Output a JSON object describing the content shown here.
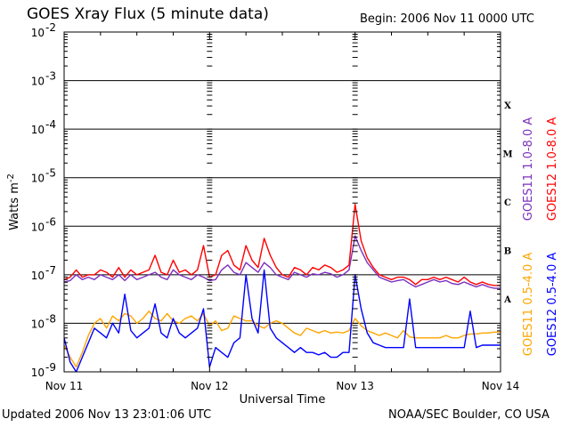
{
  "header": {
    "title": "GOES Xray Flux (5 minute data)",
    "begin": "Begin:  2006 Nov 11 0000 UTC"
  },
  "footer": {
    "updated": "Updated 2006 Nov 13 23:01:06 UTC",
    "credit": "NOAA/SEC Boulder, CO USA"
  },
  "chart_data": {
    "type": "line",
    "title": "GOES Xray Flux (5 minute data)",
    "xlabel": "Universal Time",
    "ylabel": "Watts m",
    "ylabel_sup": "-2",
    "yscale": "log",
    "ylim": [
      1e-09,
      0.01
    ],
    "xlim_hours": [
      0,
      72
    ],
    "x_ticks": [
      {
        "hour": 0,
        "label": "Nov 11"
      },
      {
        "hour": 24,
        "label": "Nov 12"
      },
      {
        "hour": 48,
        "label": "Nov 13"
      },
      {
        "hour": 72,
        "label": "Nov 14"
      }
    ],
    "y_ticks": [
      {
        "exp": -9,
        "label": "-9"
      },
      {
        "exp": -8,
        "label": "-8"
      },
      {
        "exp": -7,
        "label": "-7"
      },
      {
        "exp": -6,
        "label": "-6"
      },
      {
        "exp": -5,
        "label": "-5"
      },
      {
        "exp": -4,
        "label": "-4"
      },
      {
        "exp": -3,
        "label": "-3"
      },
      {
        "exp": -2,
        "label": "-2"
      }
    ],
    "flare_classes": [
      {
        "label": "A",
        "exp": -7.5
      },
      {
        "label": "B",
        "exp": -6.5
      },
      {
        "label": "C",
        "exp": -5.5
      },
      {
        "label": "M",
        "exp": -4.5
      },
      {
        "label": "X",
        "exp": -3.5
      }
    ],
    "grid": true,
    "legend_position": "right",
    "series": [
      {
        "name": "GOES11 1.0-8.0 A",
        "color": "#7b2fbf",
        "hours": [
          0,
          1,
          2,
          3,
          4,
          5,
          6,
          7,
          8,
          9,
          10,
          11,
          12,
          13,
          14,
          15,
          16,
          17,
          18,
          19,
          20,
          21,
          22,
          23,
          24,
          25,
          26,
          27,
          28,
          29,
          30,
          31,
          32,
          33,
          34,
          35,
          36,
          37,
          38,
          39,
          40,
          41,
          42,
          43,
          44,
          45,
          46,
          47,
          48,
          49,
          50,
          51,
          52,
          53,
          54,
          55,
          56,
          57,
          58,
          59,
          60,
          61,
          62,
          63,
          64,
          65,
          66,
          67,
          68,
          69,
          70,
          71,
          72
        ],
        "log10": [
          -7.15,
          -7.12,
          -7.0,
          -7.1,
          -7.05,
          -7.1,
          -7.0,
          -7.05,
          -7.1,
          -7.0,
          -7.12,
          -7.0,
          -7.1,
          -7.05,
          -7.0,
          -6.95,
          -7.05,
          -7.1,
          -6.9,
          -7.0,
          -7.05,
          -7.1,
          -7.0,
          -7.05,
          -7.12,
          -7.1,
          -6.9,
          -6.8,
          -6.95,
          -7.0,
          -6.75,
          -6.85,
          -6.95,
          -6.75,
          -6.85,
          -7.0,
          -7.05,
          -7.1,
          -6.95,
          -7.0,
          -7.05,
          -6.98,
          -7.0,
          -6.95,
          -6.98,
          -7.05,
          -7.0,
          -6.9,
          -6.2,
          -6.5,
          -6.75,
          -6.9,
          -7.05,
          -7.1,
          -7.15,
          -7.12,
          -7.1,
          -7.18,
          -7.25,
          -7.2,
          -7.15,
          -7.1,
          -7.15,
          -7.12,
          -7.18,
          -7.2,
          -7.15,
          -7.2,
          -7.25,
          -7.2,
          -7.25,
          -7.28,
          -7.28
        ]
      },
      {
        "name": "GOES12 1.0-8.0 A",
        "color": "#ff0000",
        "hours": [
          0,
          1,
          2,
          3,
          4,
          5,
          6,
          7,
          8,
          9,
          10,
          11,
          12,
          13,
          14,
          15,
          16,
          17,
          18,
          19,
          20,
          21,
          22,
          23,
          24,
          25,
          26,
          27,
          28,
          29,
          30,
          31,
          32,
          33,
          34,
          35,
          36,
          37,
          38,
          39,
          40,
          41,
          42,
          43,
          44,
          45,
          46,
          47,
          48,
          49,
          50,
          51,
          52,
          53,
          54,
          55,
          56,
          57,
          58,
          59,
          60,
          61,
          62,
          63,
          64,
          65,
          66,
          67,
          68,
          69,
          70,
          71,
          72
        ],
        "log10": [
          -7.1,
          -7.05,
          -6.9,
          -7.05,
          -7.0,
          -7.0,
          -6.9,
          -6.95,
          -7.05,
          -6.85,
          -7.05,
          -6.9,
          -7.0,
          -6.95,
          -6.9,
          -6.6,
          -6.95,
          -7.0,
          -6.7,
          -6.95,
          -6.9,
          -7.0,
          -6.9,
          -6.4,
          -7.05,
          -7.0,
          -6.6,
          -6.5,
          -6.8,
          -6.9,
          -6.4,
          -6.7,
          -6.85,
          -6.25,
          -6.6,
          -6.85,
          -7.0,
          -7.05,
          -6.85,
          -6.9,
          -7.0,
          -6.85,
          -6.9,
          -6.8,
          -6.85,
          -6.95,
          -6.9,
          -6.8,
          -5.55,
          -6.3,
          -6.65,
          -6.85,
          -7.0,
          -7.05,
          -7.1,
          -7.05,
          -7.05,
          -7.1,
          -7.2,
          -7.1,
          -7.1,
          -7.05,
          -7.1,
          -7.05,
          -7.1,
          -7.15,
          -7.05,
          -7.15,
          -7.2,
          -7.15,
          -7.2,
          -7.22,
          -7.22
        ]
      },
      {
        "name": "GOES11 0.5-4.0 A",
        "color": "#ffa500",
        "hours": [
          0,
          1,
          2,
          3,
          4,
          5,
          6,
          7,
          8,
          9,
          10,
          11,
          12,
          13,
          14,
          15,
          16,
          17,
          18,
          19,
          20,
          21,
          22,
          23,
          24,
          25,
          26,
          27,
          28,
          29,
          30,
          31,
          32,
          33,
          34,
          35,
          36,
          37,
          38,
          39,
          40,
          41,
          42,
          43,
          44,
          45,
          46,
          47,
          48,
          49,
          50,
          51,
          52,
          53,
          54,
          55,
          56,
          57,
          58,
          59,
          60,
          61,
          62,
          63,
          64,
          65,
          66,
          67,
          68,
          69,
          70,
          71,
          72
        ],
        "log10": [
          -8.45,
          -8.7,
          -8.9,
          -8.6,
          -8.25,
          -8.0,
          -7.9,
          -8.1,
          -7.85,
          -7.95,
          -7.8,
          -7.85,
          -8.0,
          -7.9,
          -7.75,
          -7.9,
          -7.95,
          -7.8,
          -7.95,
          -8.0,
          -7.9,
          -7.85,
          -7.95,
          -7.8,
          -8.05,
          -7.95,
          -8.15,
          -8.1,
          -7.85,
          -7.9,
          -7.95,
          -7.95,
          -8.05,
          -8.1,
          -8.0,
          -7.95,
          -8.0,
          -8.1,
          -8.2,
          -8.25,
          -8.1,
          -8.15,
          -8.2,
          -8.15,
          -8.2,
          -8.18,
          -8.2,
          -8.15,
          -7.9,
          -8.05,
          -8.15,
          -8.2,
          -8.25,
          -8.2,
          -8.25,
          -8.3,
          -8.15,
          -8.28,
          -8.3,
          -8.3,
          -8.3,
          -8.3,
          -8.3,
          -8.25,
          -8.3,
          -8.3,
          -8.25,
          -8.22,
          -8.22,
          -8.2,
          -8.2,
          -8.18,
          -8.18
        ]
      },
      {
        "name": "GOES12 0.5-4.0 A",
        "color": "#0000ff",
        "hours": [
          0,
          1,
          2,
          3,
          4,
          5,
          6,
          7,
          8,
          9,
          10,
          11,
          12,
          13,
          14,
          15,
          16,
          17,
          18,
          19,
          20,
          21,
          22,
          23,
          24,
          25,
          26,
          27,
          28,
          29,
          30,
          31,
          32,
          33,
          34,
          35,
          36,
          37,
          38,
          39,
          40,
          41,
          42,
          43,
          44,
          45,
          46,
          47,
          48,
          49,
          50,
          51,
          52,
          53,
          54,
          55,
          56,
          57,
          58,
          59,
          60,
          61,
          62,
          63,
          64,
          65,
          66,
          67,
          68,
          69,
          70,
          71,
          72
        ],
        "log10": [
          -8.3,
          -8.8,
          -9.0,
          -8.7,
          -8.4,
          -8.1,
          -8.2,
          -8.3,
          -8.0,
          -8.2,
          -7.4,
          -8.15,
          -8.3,
          -8.2,
          -8.1,
          -7.6,
          -8.2,
          -8.3,
          -7.9,
          -8.2,
          -8.3,
          -8.2,
          -8.1,
          -7.7,
          -8.9,
          -8.5,
          -8.6,
          -8.7,
          -8.4,
          -8.3,
          -7.0,
          -7.9,
          -8.2,
          -6.9,
          -8.1,
          -8.3,
          -8.4,
          -8.5,
          -8.6,
          -8.5,
          -8.6,
          -8.6,
          -8.65,
          -8.6,
          -8.7,
          -8.7,
          -8.6,
          -8.6,
          -7.0,
          -7.7,
          -8.2,
          -8.4,
          -8.45,
          -8.5,
          -8.5,
          -8.5,
          -8.5,
          -7.5,
          -8.5,
          -8.5,
          -8.5,
          -8.5,
          -8.5,
          -8.5,
          -8.5,
          -8.5,
          -8.5,
          -7.75,
          -8.5,
          -8.45,
          -8.45,
          -8.45,
          -8.45
        ]
      }
    ]
  }
}
